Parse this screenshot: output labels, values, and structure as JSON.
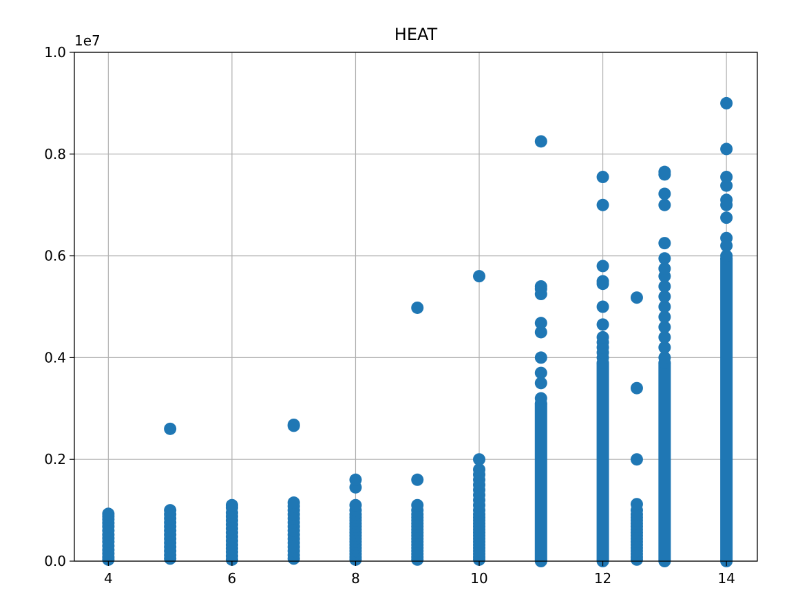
{
  "chart_data": {
    "type": "scatter",
    "title": "HEAT",
    "xlabel": "",
    "ylabel": "",
    "xlim": [
      3.45,
      14.5
    ],
    "ylim": [
      0,
      10000000
    ],
    "x_ticks": [
      4,
      6,
      8,
      10,
      12,
      14
    ],
    "x_tick_labels": [
      "4",
      "6",
      "8",
      "10",
      "12",
      "14"
    ],
    "y_ticks": [
      0,
      2000000,
      4000000,
      6000000,
      8000000,
      10000000
    ],
    "y_tick_labels": [
      "0.0",
      "0.2",
      "0.4",
      "0.6",
      "0.8",
      "1.0"
    ],
    "y_offset_label": "1e7",
    "grid": true,
    "marker_color": "#1f77b4",
    "columns": [
      {
        "x": 4,
        "points": [
          30000,
          80000,
          150000,
          220000,
          300000,
          380000,
          450000,
          520000,
          600000,
          680000,
          750000,
          820000,
          880000,
          930000
        ]
      },
      {
        "x": 5,
        "points": [
          50000,
          120000,
          200000,
          280000,
          360000,
          440000,
          520000,
          600000,
          680000,
          760000,
          840000,
          920000,
          1000000,
          2600000
        ]
      },
      {
        "x": 6,
        "points": [
          30000,
          100000,
          180000,
          250000,
          320000,
          400000,
          480000,
          560000,
          640000,
          720000,
          800000,
          880000,
          950000,
          1050000,
          1100000
        ]
      },
      {
        "x": 7,
        "points": [
          50000,
          120000,
          200000,
          280000,
          360000,
          440000,
          520000,
          600000,
          680000,
          760000,
          840000,
          920000,
          1000000,
          1080000,
          1150000,
          2660000,
          2680000
        ]
      },
      {
        "x": 8,
        "points": [
          30000,
          80000,
          140000,
          200000,
          260000,
          320000,
          380000,
          440000,
          500000,
          560000,
          620000,
          680000,
          740000,
          800000,
          860000,
          920000,
          1000000,
          1100000,
          1450000,
          1600000
        ]
      },
      {
        "x": 9,
        "points": [
          30000,
          80000,
          140000,
          200000,
          260000,
          320000,
          380000,
          440000,
          500000,
          560000,
          620000,
          680000,
          740000,
          800000,
          860000,
          920000,
          1000000,
          1100000,
          1600000,
          4980000
        ]
      },
      {
        "x": 10,
        "points": [
          30000,
          80000,
          140000,
          200000,
          260000,
          320000,
          380000,
          440000,
          500000,
          560000,
          620000,
          680000,
          740000,
          800000,
          860000,
          920000,
          1000000,
          1100000,
          1200000,
          1300000,
          1400000,
          1500000,
          1600000,
          1700000,
          1800000,
          2000000,
          5600000
        ]
      },
      {
        "x": 11,
        "points": [
          0,
          3200000,
          3500000,
          3700000,
          4000000,
          4500000,
          4680000,
          5250000,
          5350000,
          5400000,
          8250000
        ]
      },
      {
        "x": 12,
        "points": [
          0,
          4000000,
          4100000,
          4200000,
          4300000,
          4400000,
          4650000,
          5000000,
          5450000,
          5500000,
          5800000,
          7000000,
          7550000
        ]
      },
      {
        "x": 12.55,
        "points": [
          30000,
          80000,
          140000,
          200000,
          260000,
          320000,
          380000,
          440000,
          500000,
          560000,
          620000,
          680000,
          740000,
          800000,
          860000,
          920000,
          1000000,
          1120000,
          2000000,
          3400000,
          5180000
        ]
      },
      {
        "x": 13,
        "points": [
          0,
          4000000,
          4200000,
          4400000,
          4600000,
          4800000,
          5000000,
          5200000,
          5400000,
          5600000,
          5750000,
          5950000,
          6250000,
          7000000,
          7220000,
          7600000,
          7650000
        ]
      },
      {
        "x": 14,
        "points": [
          0,
          6000000,
          6200000,
          6350000,
          6750000,
          7000000,
          7100000,
          7380000,
          7550000,
          8100000,
          9000000
        ]
      }
    ],
    "dense_columns": [
      {
        "x": 11,
        "from": 0,
        "to": 3100000
      },
      {
        "x": 12,
        "from": 0,
        "to": 3900000
      },
      {
        "x": 13,
        "from": 0,
        "to": 3900000
      },
      {
        "x": 14,
        "from": 0,
        "to": 5950000
      }
    ]
  }
}
